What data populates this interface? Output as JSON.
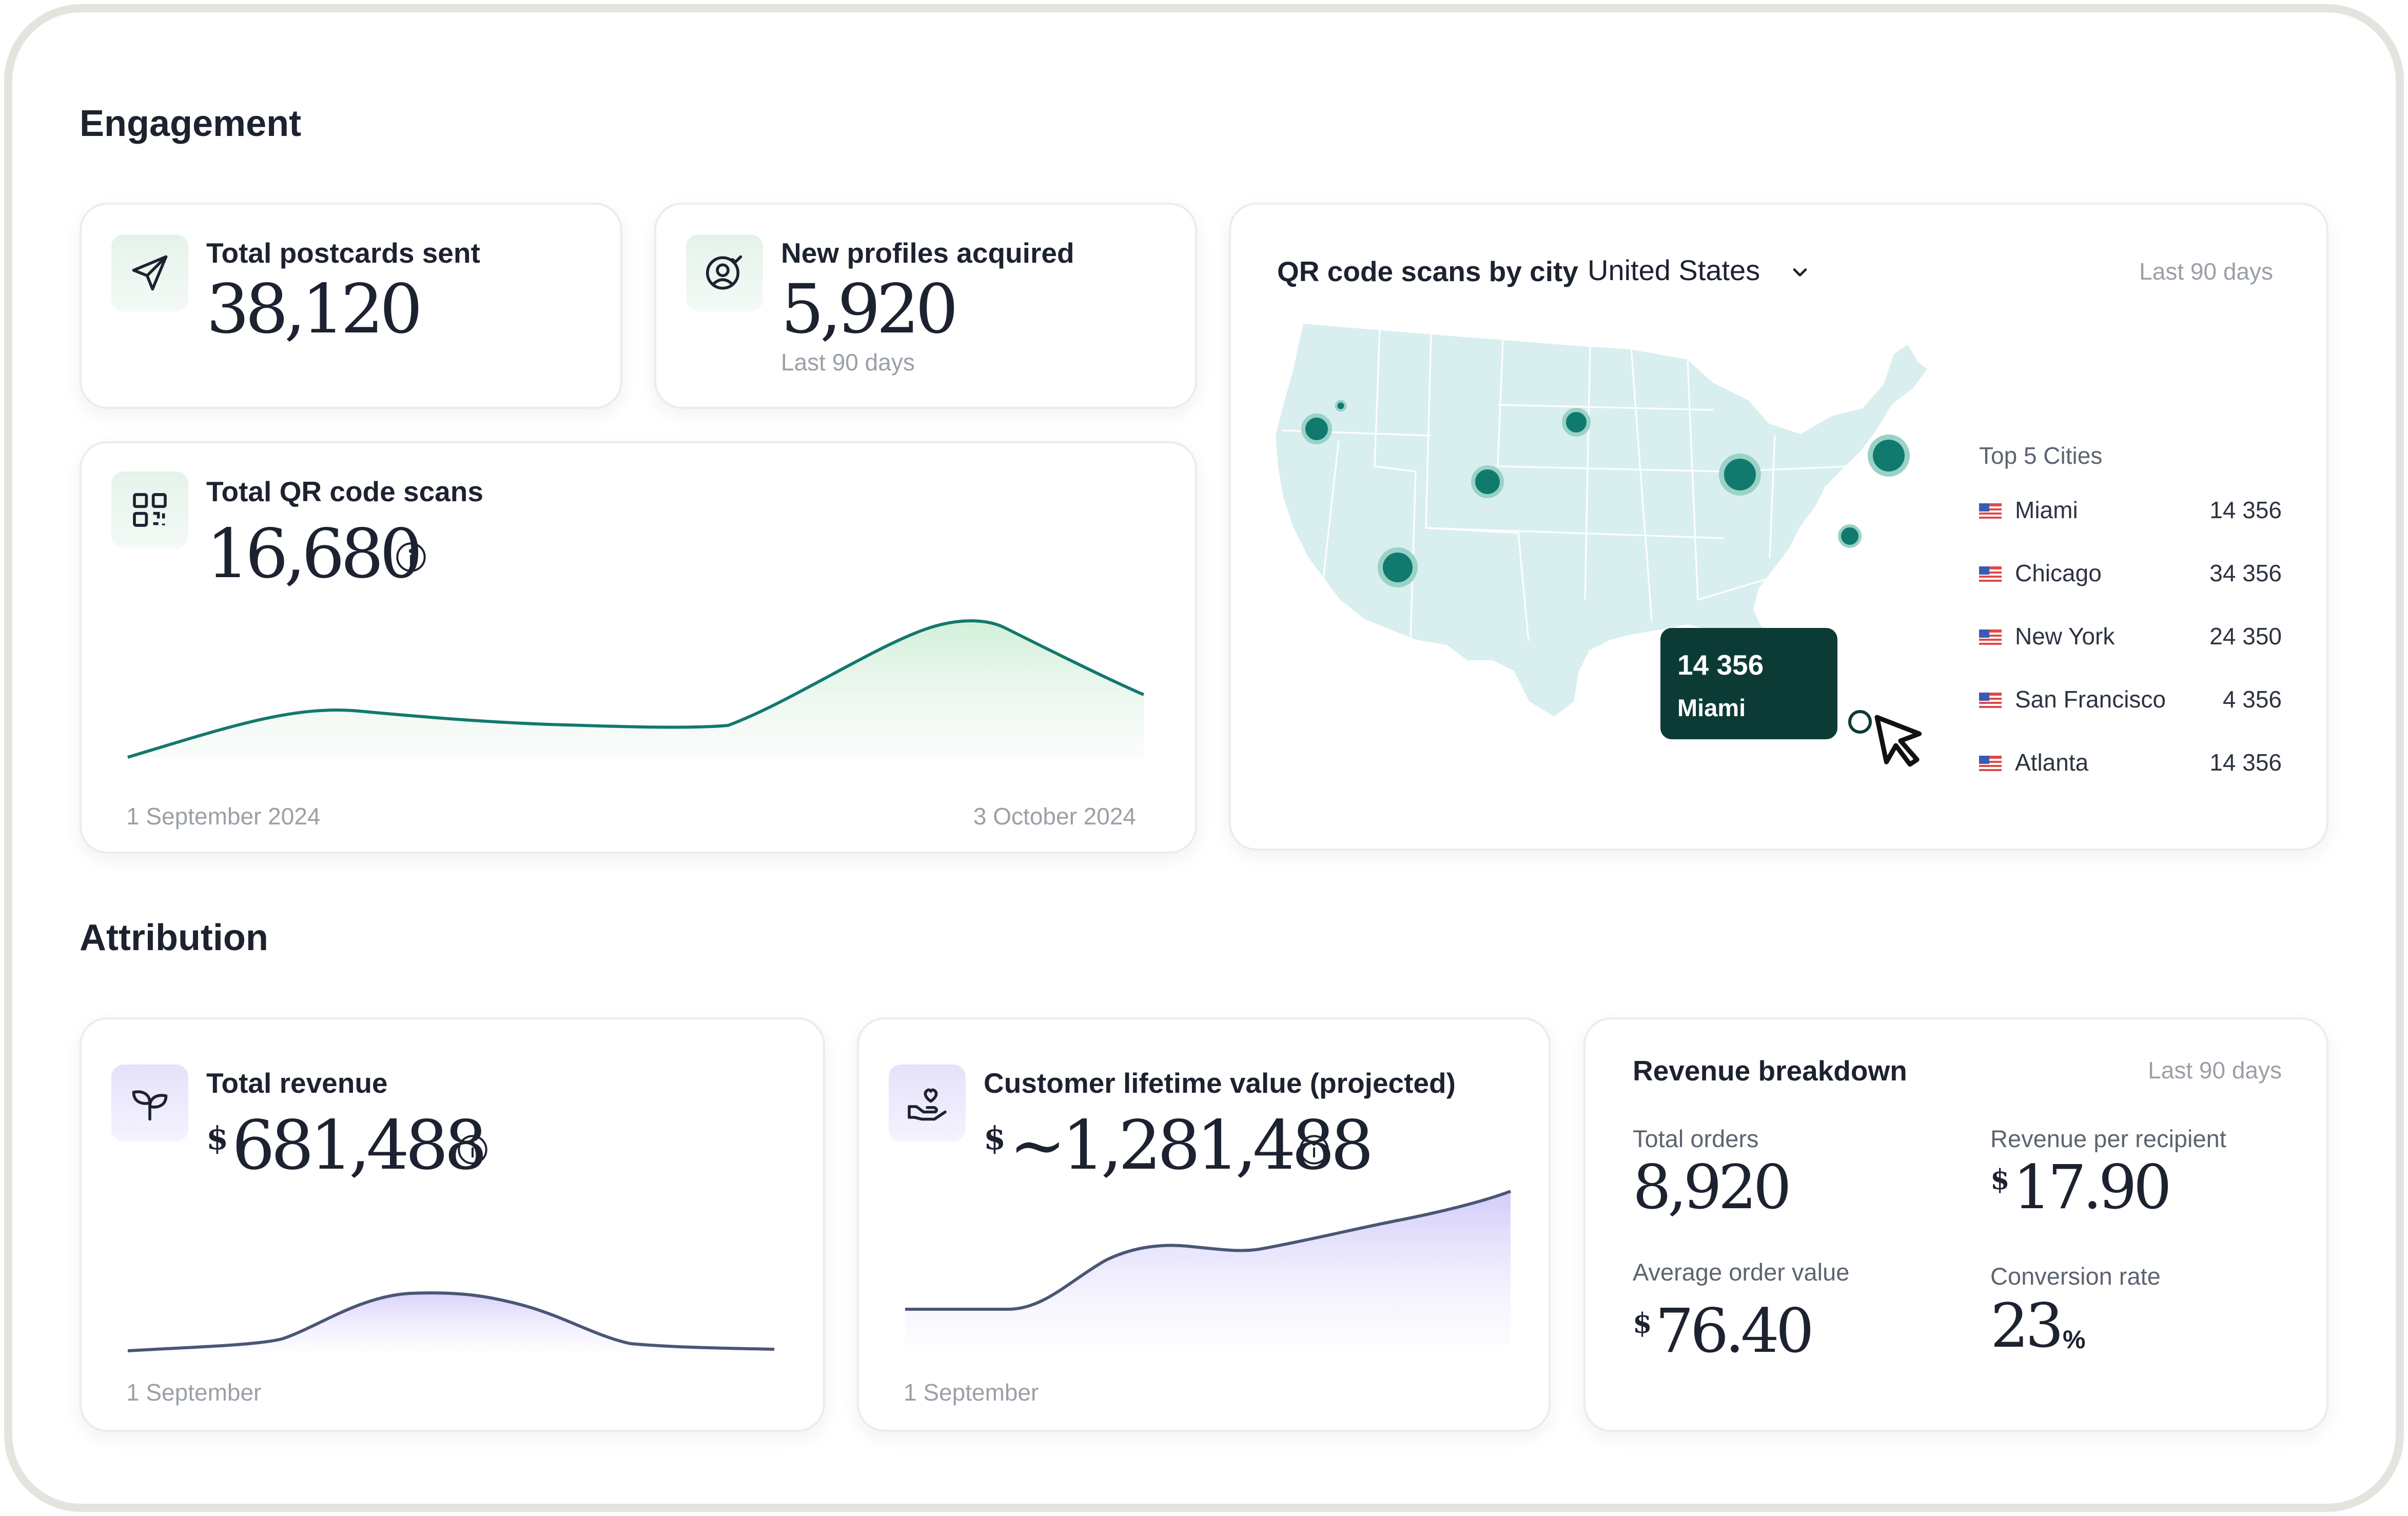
{
  "engagement": {
    "title": "Engagement",
    "postcards": {
      "label": "Total postcards sent",
      "value": "38,120"
    },
    "profiles": {
      "label": "New profiles acquired",
      "value": "5,920",
      "period": "Last 90 days"
    },
    "qr_scans": {
      "label": "Total QR code scans",
      "value": "16,680",
      "start_date": "1 September 2024",
      "end_date": "3 October 2024"
    },
    "map": {
      "title": "QR code scans by city",
      "country": "United States",
      "period": "Last 90 days",
      "tooltip": {
        "value": "14 356",
        "city": "Miami"
      },
      "top_title": "Top 5 Cities",
      "cities": [
        {
          "name": "Miami",
          "value": "14 356"
        },
        {
          "name": "Chicago",
          "value": "34 356"
        },
        {
          "name": "New York",
          "value": "24 350"
        },
        {
          "name": "San Francisco",
          "value": "4 356"
        },
        {
          "name": "Atlanta",
          "value": "14 356"
        }
      ]
    }
  },
  "attribution": {
    "title": "Attribution",
    "revenue": {
      "label": "Total revenue",
      "currency": "$",
      "value": "681,488",
      "start_date": "1 September"
    },
    "clv": {
      "label": "Customer lifetime value (projected)",
      "currency": "$",
      "value": "~1,281,488",
      "start_date": "1 September"
    },
    "breakdown": {
      "title": "Revenue breakdown",
      "period": "Last 90 days",
      "total_orders": {
        "label": "Total orders",
        "value": "8,920"
      },
      "rev_per_recipient": {
        "label": "Revenue per recipient",
        "currency": "$",
        "value": "17.90"
      },
      "aov": {
        "label": "Average order value",
        "currency": "$",
        "value": "76.40"
      },
      "conversion": {
        "label": "Conversion rate",
        "value": "23",
        "unit": "%"
      }
    }
  },
  "colors": {
    "teal": "#117a6e",
    "tooltip_bg": "#0c3b36",
    "map_fill": "#d9efef",
    "purple_line": "#4b5675",
    "green_line": "#12796c"
  }
}
